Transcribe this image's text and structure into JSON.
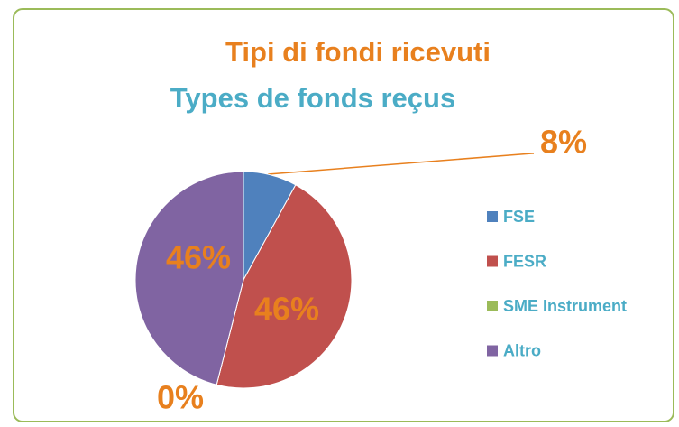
{
  "chart_data": {
    "type": "pie",
    "title": "Tipi di fondi ricevuti",
    "subtitle": "Types de fonds reçus",
    "categories": [
      "FSE",
      "FESR",
      "SME Instrument",
      "Altro"
    ],
    "values": [
      8,
      46,
      0,
      46
    ],
    "value_labels": [
      "8%",
      "46%",
      "0%",
      "46%"
    ],
    "colors": [
      "#4f81bd",
      "#c0504d",
      "#9bbb59",
      "#8064a2"
    ],
    "legend": "right"
  }
}
